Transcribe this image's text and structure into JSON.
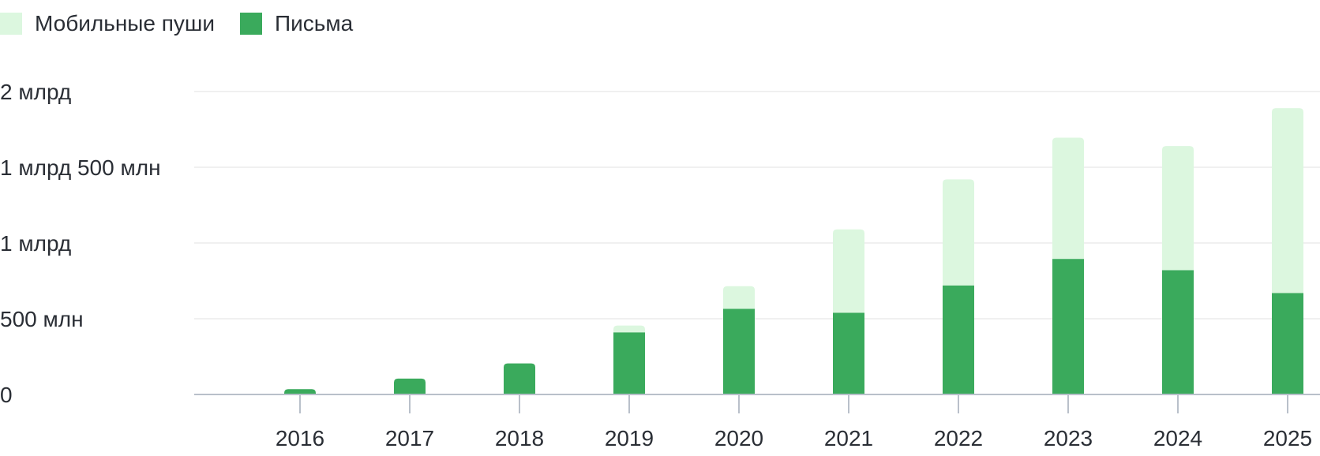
{
  "chart_data": {
    "type": "bar",
    "stacked": true,
    "categories": [
      "2016",
      "2017",
      "2018",
      "2019",
      "2020",
      "2021",
      "2022",
      "2023",
      "2024",
      "2025"
    ],
    "series": [
      {
        "name": "Письма",
        "color": "#3aaa5c",
        "values": [
          35,
          105,
          205,
          410,
          565,
          540,
          720,
          895,
          820,
          670
        ]
      },
      {
        "name": "Мобильные пуши",
        "color": "#dcf7df",
        "values": [
          0,
          0,
          0,
          45,
          150,
          550,
          700,
          800,
          820,
          1220
        ]
      }
    ],
    "legend_order": [
      "Мобильные пуши",
      "Письма"
    ],
    "legend_position": "top-left",
    "ylim": [
      0,
      2000
    ],
    "yticks": [
      0,
      500,
      1000,
      1500,
      2000
    ],
    "ytick_labels": [
      "0",
      "500 млн",
      "1 млрд",
      "1 млрд 500 млн",
      "2 млрд"
    ],
    "grid": true,
    "title": "",
    "xlabel": "",
    "ylabel": ""
  }
}
